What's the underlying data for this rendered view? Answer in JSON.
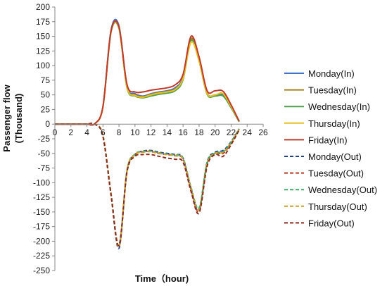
{
  "chart_data": {
    "type": "line",
    "title": "",
    "xlabel": "Time（hour)",
    "ylabel_line1": "Passenger flow",
    "ylabel_line2": "(Thousand)",
    "xlim": [
      0,
      26
    ],
    "ylim": [
      -250,
      200
    ],
    "x_ticks": [
      0,
      2,
      4,
      6,
      8,
      10,
      12,
      14,
      16,
      18,
      20,
      22,
      24,
      26
    ],
    "y_ticks": [
      200,
      175,
      150,
      125,
      100,
      75,
      50,
      25,
      0,
      -25,
      -50,
      -75,
      -100,
      -125,
      -150,
      -175,
      -200,
      -225,
      -250
    ],
    "grid": false,
    "legend_position": "right",
    "x": [
      0,
      1,
      2,
      3,
      4,
      5,
      6,
      7,
      8,
      9,
      10,
      11,
      12,
      13,
      14,
      15,
      16,
      17,
      18,
      19,
      20,
      21,
      22,
      23
    ],
    "series": [
      {
        "name": "Monday(In)",
        "color": "#4472C4",
        "dash": false,
        "values": [
          0,
          0,
          0,
          0,
          0,
          1,
          30,
          160,
          168,
          65,
          52,
          48,
          52,
          55,
          57,
          62,
          80,
          145,
          110,
          52,
          50,
          50,
          30,
          5
        ]
      },
      {
        "name": "Tuesday(In)",
        "color": "#A6801E",
        "dash": false,
        "values": [
          0,
          0,
          0,
          0,
          0,
          1,
          30,
          158,
          165,
          63,
          50,
          47,
          51,
          54,
          56,
          60,
          78,
          146,
          112,
          53,
          50,
          52,
          30,
          5
        ]
      },
      {
        "name": "Wednesday(In)",
        "color": "#4EA04E",
        "dash": false,
        "values": [
          0,
          0,
          0,
          0,
          0,
          1,
          29,
          156,
          163,
          62,
          48,
          45,
          48,
          51,
          53,
          57,
          76,
          143,
          108,
          51,
          48,
          48,
          28,
          4
        ]
      },
      {
        "name": "Thursday(In)",
        "color": "#E8C021",
        "dash": false,
        "values": [
          0,
          0,
          0,
          0,
          0,
          1,
          29,
          157,
          164,
          63,
          49,
          46,
          50,
          53,
          55,
          59,
          78,
          140,
          108,
          52,
          50,
          52,
          30,
          5
        ]
      },
      {
        "name": "Friday(In)",
        "color": "#C0392B",
        "dash": false,
        "values": [
          0,
          0,
          0,
          0,
          0,
          1,
          30,
          158,
          166,
          68,
          55,
          55,
          58,
          60,
          62,
          67,
          85,
          150,
          115,
          57,
          57,
          56,
          33,
          5
        ]
      },
      {
        "name": "Monday(Out)",
        "color": "#1F3F8F",
        "dash": true,
        "values": [
          0,
          0,
          0,
          0,
          0,
          0,
          -20,
          -120,
          -212,
          -80,
          -52,
          -46,
          -45,
          -48,
          -50,
          -52,
          -58,
          -110,
          -145,
          -65,
          -48,
          -45,
          -30,
          -8
        ]
      },
      {
        "name": "Tuesday(Out)",
        "color": "#B23A26",
        "dash": true,
        "values": [
          0,
          0,
          0,
          0,
          0,
          0,
          -20,
          -118,
          -210,
          -80,
          -52,
          -47,
          -47,
          -50,
          -52,
          -54,
          -60,
          -112,
          -148,
          -68,
          -50,
          -50,
          -32,
          -9
        ]
      },
      {
        "name": "Wednesday(Out)",
        "color": "#3BAF6A",
        "dash": true,
        "values": [
          0,
          0,
          0,
          0,
          0,
          0,
          -19,
          -117,
          -208,
          -79,
          -51,
          -47,
          -46,
          -49,
          -51,
          -53,
          -58,
          -108,
          -143,
          -66,
          -49,
          -47,
          -31,
          -8
        ]
      },
      {
        "name": "Thursday(Out)",
        "color": "#C9A227",
        "dash": true,
        "values": [
          0,
          0,
          0,
          0,
          0,
          0,
          -19,
          -118,
          -209,
          -80,
          -52,
          -48,
          -47,
          -50,
          -52,
          -54,
          -60,
          -110,
          -146,
          -67,
          -50,
          -48,
          -32,
          -9
        ]
      },
      {
        "name": "Friday(Out)",
        "color": "#8B2A1E",
        "dash": true,
        "values": [
          0,
          0,
          0,
          0,
          0,
          0,
          -21,
          -120,
          -207,
          -82,
          -55,
          -52,
          -52,
          -55,
          -58,
          -60,
          -65,
          -115,
          -152,
          -72,
          -52,
          -55,
          -35,
          -10
        ]
      }
    ]
  }
}
